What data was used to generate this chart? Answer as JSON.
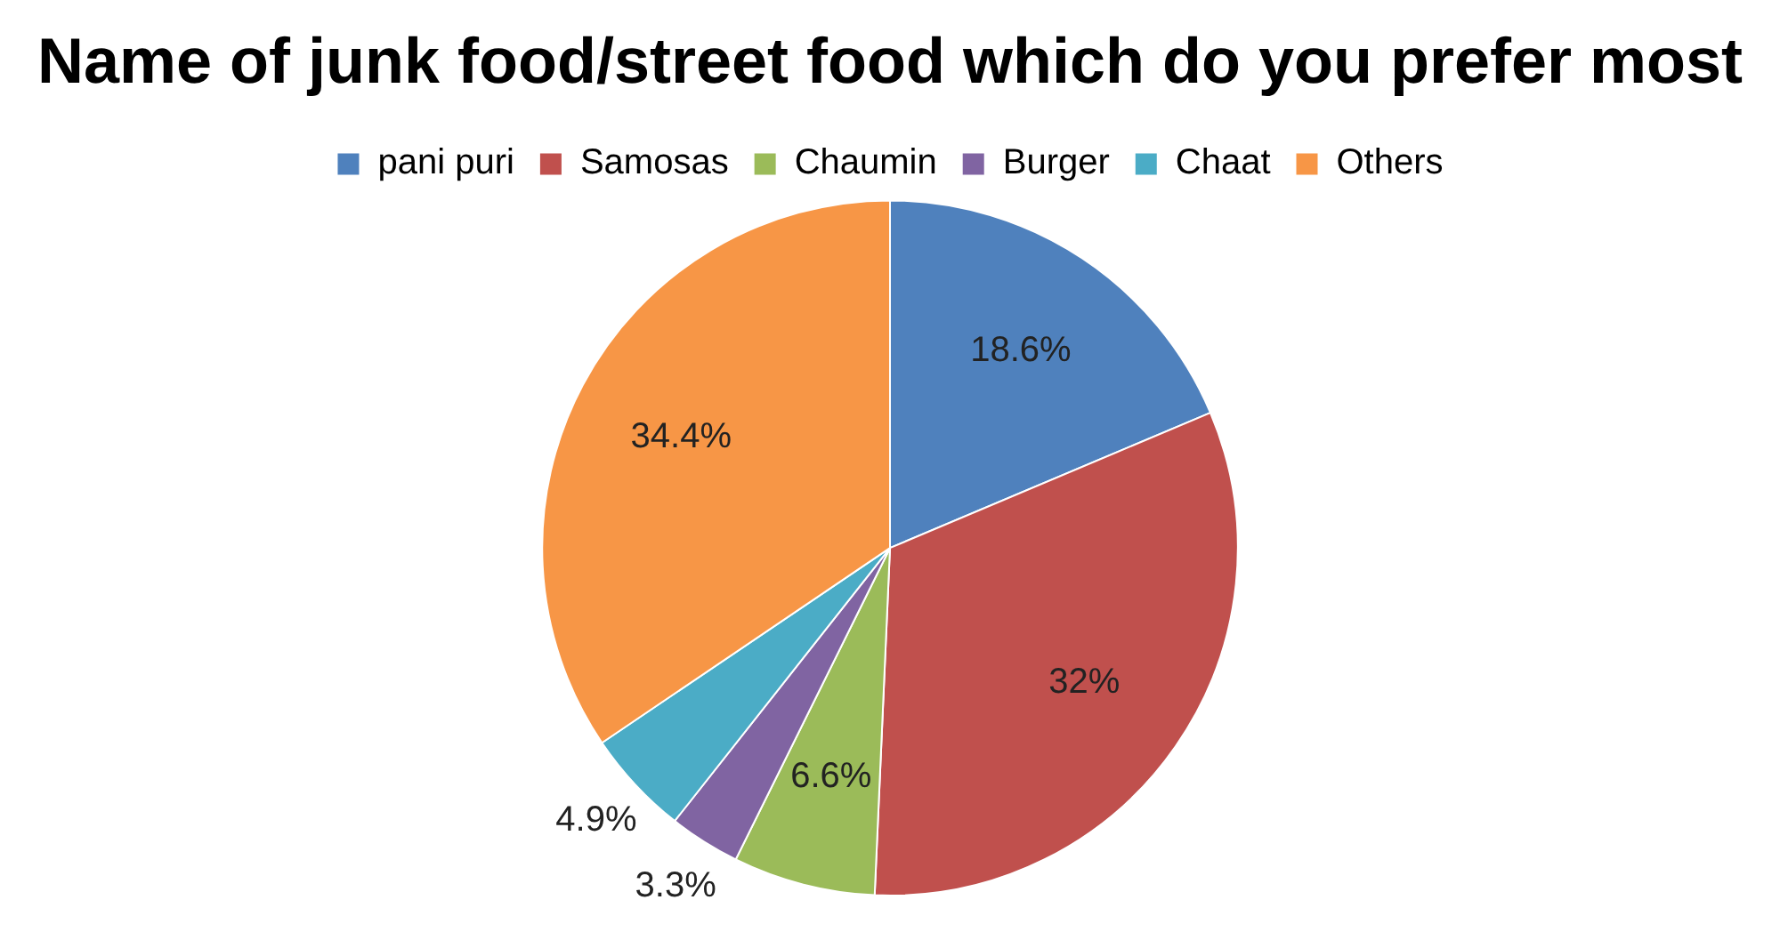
{
  "chart_data": {
    "type": "pie",
    "title": "Name of junk food/street food which do you prefer most",
    "categories": [
      "pani puri",
      "Samosas",
      "Chaumin",
      "Burger",
      "Chaat",
      "Others"
    ],
    "values": [
      18.6,
      32,
      6.6,
      3.3,
      4.9,
      34.4
    ],
    "value_labels": [
      "18.6%",
      "32%",
      "6.6%",
      "3.3%",
      "4.9%",
      "34.4%"
    ],
    "colors": [
      "#4f81bd",
      "#c0504d",
      "#9bbb59",
      "#8064a2",
      "#4bacc6",
      "#f79646"
    ],
    "legend": "top"
  }
}
